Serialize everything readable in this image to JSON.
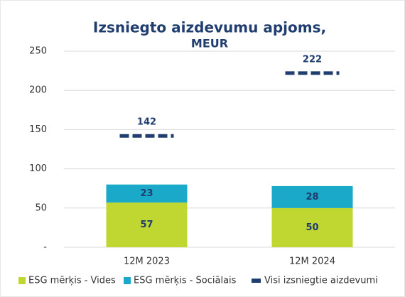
{
  "chart_data": {
    "type": "bar",
    "stacked": true,
    "title": [
      "Izsniegto aizdevumu apjoms,",
      "MEUR"
    ],
    "categories": [
      "12M 2023",
      "12M 2024"
    ],
    "series": [
      {
        "name": "ESG mērķis - Vides",
        "type": "bar",
        "color": "#bfd730",
        "values": [
          57,
          50
        ]
      },
      {
        "name": "ESG mērķis - Sociālais",
        "type": "bar",
        "color": "#1aa9c9",
        "values": [
          23,
          28
        ]
      },
      {
        "name": "Visi izsniegtie aizdevumi",
        "type": "line",
        "linestyle": "dashed",
        "color": "#1f3d6e",
        "values": [
          142,
          222
        ]
      }
    ],
    "ylim": [
      0,
      250
    ],
    "yticks": [
      {
        "value": 0,
        "label": "-"
      },
      50,
      100,
      150,
      200,
      250
    ],
    "grid": true,
    "legend": "bottom"
  }
}
